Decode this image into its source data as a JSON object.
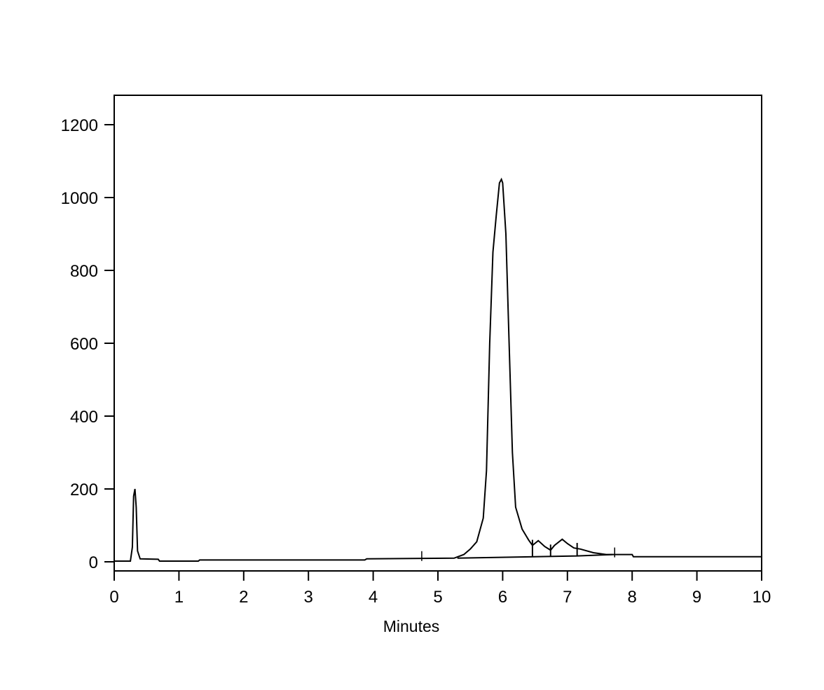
{
  "chart_data": {
    "type": "line",
    "title": "",
    "xlabel": "Minutes",
    "ylabel": "",
    "xlim": [
      0,
      10
    ],
    "ylim": [
      -20,
      1280
    ],
    "grid": false,
    "x_ticks": [
      "0",
      "1",
      "2",
      "3",
      "4",
      "5",
      "6",
      "7",
      "8",
      "9",
      "10"
    ],
    "y_ticks": [
      "0",
      "200",
      "400",
      "600",
      "800",
      "1000",
      "1200"
    ],
    "series": [
      {
        "x": [
          0,
          0.25,
          0.28,
          0.3,
          0.32,
          0.34,
          0.36,
          0.4,
          0.68,
          0.7,
          1.3,
          1.32,
          3.87,
          3.9,
          5.25,
          5.4,
          5.5,
          5.6,
          5.7,
          5.75,
          5.8,
          5.85,
          5.9,
          5.95,
          5.98,
          6.0,
          6.05,
          6.1,
          6.15,
          6.2,
          6.3,
          6.4,
          6.46,
          6.55,
          6.65,
          6.74,
          6.8,
          6.92,
          7.0,
          7.1,
          7.2,
          7.4,
          7.6,
          8.0,
          8.02,
          10
        ],
        "y": [
          2,
          2,
          40,
          180,
          200,
          150,
          30,
          8,
          7,
          2,
          2,
          5,
          5,
          8,
          10,
          20,
          35,
          55,
          120,
          250,
          600,
          850,
          950,
          1040,
          1050,
          1040,
          900,
          600,
          300,
          150,
          90,
          60,
          45,
          58,
          42,
          32,
          45,
          62,
          50,
          38,
          35,
          25,
          20,
          20,
          14,
          14
        ]
      }
    ],
    "baseline": {
      "x": [
        5.3,
        7.15,
        7.7
      ],
      "y": [
        10,
        16,
        20
      ]
    },
    "peak_markers": [
      6.46,
      6.74,
      7.15
    ],
    "event_ticks": [
      4.75,
      7.73
    ]
  }
}
